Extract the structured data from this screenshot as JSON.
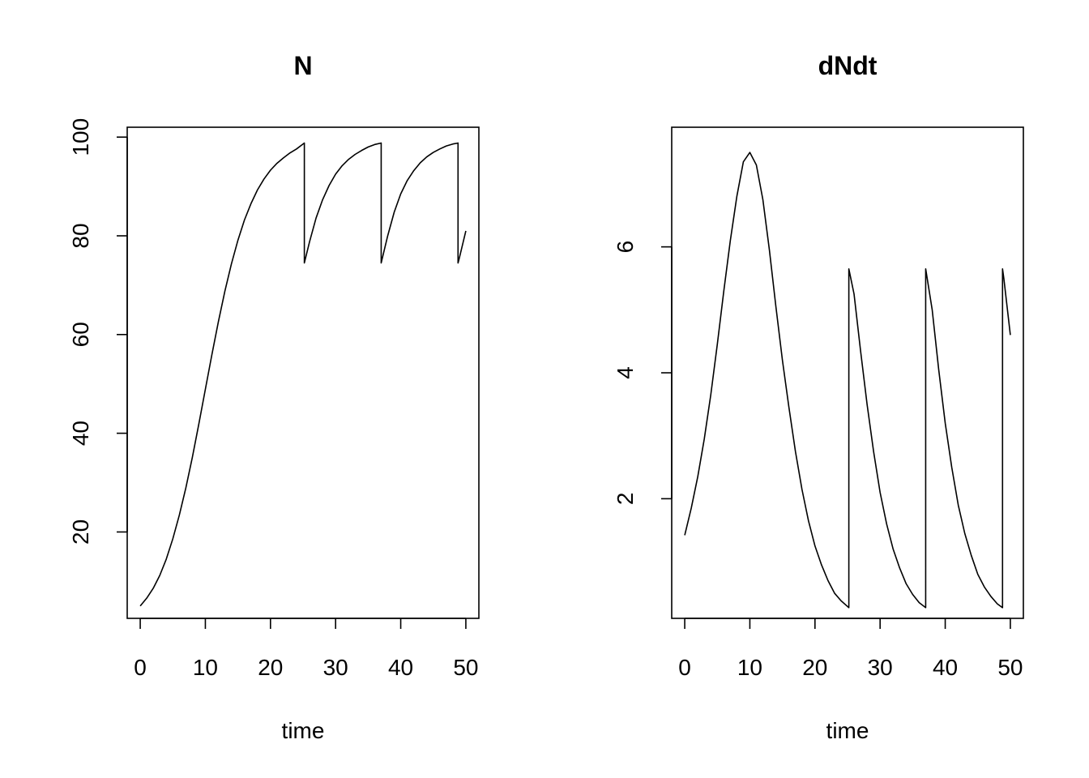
{
  "chart_data": [
    {
      "type": "line",
      "title": "N",
      "xlabel": "time",
      "ylabel": "",
      "xlim": [
        -2,
        52
      ],
      "ylim": [
        2.5,
        102
      ],
      "xticks": [
        0,
        10,
        20,
        30,
        40,
        50
      ],
      "xtick_labels": [
        "0",
        "10",
        "20",
        "30",
        "40",
        "50"
      ],
      "yticks": [
        20,
        40,
        60,
        80,
        100
      ],
      "ytick_labels": [
        "20",
        "40",
        "60",
        "80",
        "100"
      ],
      "grid": false,
      "legend": "none",
      "series": [
        {
          "color": "#000000",
          "x": [
            0,
            1,
            2,
            3,
            4,
            5,
            6,
            7,
            8,
            9,
            10,
            11,
            12,
            13,
            14,
            15,
            16,
            17,
            18,
            19,
            20,
            21,
            22,
            23,
            24,
            25.2,
            25.2,
            26,
            27,
            28,
            29,
            30,
            31,
            32,
            33,
            34,
            35,
            36,
            37,
            37,
            38,
            39,
            40,
            41,
            42,
            43,
            44,
            45,
            46,
            47,
            48,
            48.8,
            48.8,
            49,
            50
          ],
          "y": [
            5,
            6.6,
            8.6,
            11.2,
            14.5,
            18.6,
            23.4,
            28.9,
            35.1,
            41.9,
            48.9,
            55.9,
            62.6,
            68.8,
            74.3,
            79.1,
            83.2,
            86.5,
            89.3,
            91.5,
            93.3,
            94.7,
            95.8,
            96.8,
            97.6,
            98.8,
            74.5,
            78.8,
            83.6,
            87.3,
            90.2,
            92.5,
            94.2,
            95.5,
            96.5,
            97.3,
            98.0,
            98.5,
            98.8,
            74.5,
            80.0,
            84.8,
            88.5,
            91.2,
            93.2,
            94.8,
            96.0,
            96.9,
            97.6,
            98.2,
            98.6,
            98.8,
            74.5,
            75.5,
            81.0
          ]
        }
      ]
    },
    {
      "type": "line",
      "title": "dNdt",
      "xlabel": "time",
      "ylabel": "",
      "xlim": [
        -2,
        52
      ],
      "ylim": [
        0.1,
        7.9
      ],
      "xticks": [
        0,
        10,
        20,
        30,
        40,
        50
      ],
      "xtick_labels": [
        "0",
        "10",
        "20",
        "30",
        "40",
        "50"
      ],
      "yticks": [
        2,
        4,
        6
      ],
      "ytick_labels": [
        "2",
        "4",
        "6"
      ],
      "grid": false,
      "legend": "none",
      "series": [
        {
          "color": "#000000",
          "x": [
            0,
            1,
            2,
            3,
            4,
            5,
            6,
            7,
            8,
            9,
            10,
            11,
            12,
            13,
            14,
            15,
            16,
            17,
            18,
            19,
            20,
            21,
            22,
            23,
            24,
            25.2,
            25.2,
            26,
            27,
            28,
            29,
            30,
            31,
            32,
            33,
            34,
            35,
            36,
            37,
            37,
            38,
            39,
            40,
            41,
            42,
            43,
            44,
            45,
            46,
            47,
            48,
            48.8,
            48.8,
            49,
            50
          ],
          "y": [
            1.42,
            1.85,
            2.35,
            2.95,
            3.65,
            4.45,
            5.3,
            6.1,
            6.8,
            7.35,
            7.5,
            7.3,
            6.75,
            5.95,
            5.05,
            4.2,
            3.45,
            2.75,
            2.15,
            1.65,
            1.25,
            0.95,
            0.7,
            0.5,
            0.38,
            0.27,
            5.65,
            5.25,
            4.35,
            3.5,
            2.75,
            2.1,
            1.6,
            1.2,
            0.9,
            0.65,
            0.48,
            0.35,
            0.27,
            5.65,
            5.0,
            4.05,
            3.2,
            2.5,
            1.9,
            1.45,
            1.1,
            0.8,
            0.6,
            0.45,
            0.33,
            0.27,
            5.65,
            5.5,
            4.6
          ]
        }
      ]
    }
  ]
}
